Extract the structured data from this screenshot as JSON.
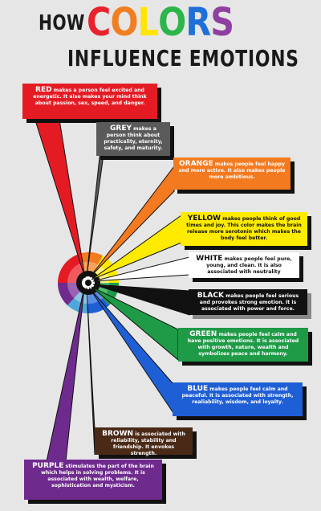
{
  "title": {
    "line1_prefix": "HOW",
    "line1_word": "COLORS",
    "line2": "INFLUENCE EMOTIONS",
    "word_letter_colors": [
      "#e8232b",
      "#f07f22",
      "#ffe500",
      "#2bb54a",
      "#1f6fd8",
      "#8e3fa0"
    ]
  },
  "colors": {
    "red": "#e51b24",
    "grey": "#5a5a5a",
    "orange": "#f47a20",
    "yellow": "#ffeb00",
    "white": "#ffffff",
    "black": "#111111",
    "green": "#1f9a47",
    "blue": "#1f5fd6",
    "brown": "#4a2a17",
    "purple": "#6f2a8e",
    "background": "#e6e6e6"
  },
  "boxes": [
    {
      "id": "red",
      "keyword": "RED",
      "text": " makes a person feel excited and energetic. It also makes your mind think about passion, sex, speed, and danger."
    },
    {
      "id": "grey",
      "keyword": "GREY",
      "text": " makes a person think about practicality, eternity, safety, and maturity."
    },
    {
      "id": "orange",
      "keyword": "ORANGE",
      "text": " makes people feel happy and more active. It also makes people more ambitious."
    },
    {
      "id": "yellow",
      "keyword": "YELLOW",
      "text": " makes people think of good times and joy. This color makes the brain release more serotonin which makes the body feel better."
    },
    {
      "id": "white",
      "keyword": "WHITE",
      "text": " makes people feel pure, young, and clean. It is also associated with neutrality"
    },
    {
      "id": "black",
      "keyword": "BLACK",
      "text": " makes people feel serious and provokes strong emotion. It is associated with power and force."
    },
    {
      "id": "green",
      "keyword": "GREEN",
      "text": " makes people feel calm and have positive emotions. It is associated with growth, nature, wealth and symbolizes peace and harmony."
    },
    {
      "id": "blue",
      "keyword": "BLUE",
      "text": " makes people feel calm and peaceful. It is associated with strength, realiability, wisdom, and loyalty."
    },
    {
      "id": "brown",
      "keyword": "BROWN",
      "text": " is associated with reliability, stability and friendship. It envokes strength."
    },
    {
      "id": "purple",
      "keyword": "PURPLE",
      "text": " stimulates the part of the brain which helps in solving problems. It is associated with wealth, welfare, sophistication and mysticism."
    }
  ]
}
